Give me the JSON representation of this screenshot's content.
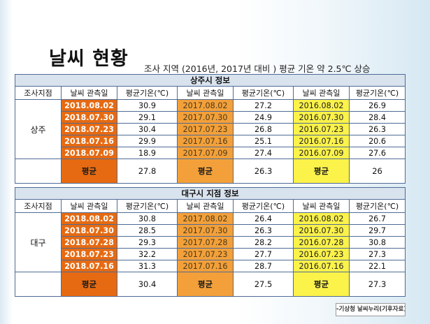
{
  "slide": {
    "title": "날씨 현황",
    "subtitle": "조사 지역 (2016년, 2017년 대비 ) 평균 기온 약 2.5℃ 상승",
    "source": "-기상청 날씨누리(기후자료)-"
  },
  "tables": [
    {
      "caption": "상주시 정보",
      "headers": {
        "station": "조사지점",
        "date": "날씨 관측일",
        "temp": "평균기온(℃)"
      },
      "region": "상주",
      "rows": [
        {
          "d2018": "2018.08.02",
          "t2018": "30.9",
          "d2017": "2017.08.02",
          "t2017": "27.2",
          "d2016": "2016.08.02",
          "t2016": "26.9"
        },
        {
          "d2018": "2018.07.30",
          "t2018": "29.1",
          "d2017": "2017.07.30",
          "t2017": "24.9",
          "d2016": "2016.07.30",
          "t2016": "28.4"
        },
        {
          "d2018": "2018.07.23",
          "t2018": "30.4",
          "d2017": "2017.07.23",
          "t2017": "26.8",
          "d2016": "2016.07.23",
          "t2016": "26.3"
        },
        {
          "d2018": "2018.07.16",
          "t2018": "29.9",
          "d2017": "2017.07.16",
          "t2017": "25.1",
          "d2016": "2016.07.16",
          "t2016": "20.6"
        },
        {
          "d2018": "2018.07.09",
          "t2018": "18.9",
          "d2017": "2017.07.09",
          "t2017": "27.4",
          "d2016": "2016.07.09",
          "t2016": "27.6"
        }
      ],
      "avg_label": "평균",
      "avg": {
        "a2018": "27.8",
        "a2017": "26.3",
        "a2016": "26"
      }
    },
    {
      "caption": "대구시 지점 정보",
      "headers": {
        "station": "조사지점",
        "date": "날씨 관측일",
        "temp": "평균기온(℃)"
      },
      "region": "대구",
      "rows": [
        {
          "d2018": "2018.08.02",
          "t2018": "30.8",
          "d2017": "2017.08.02",
          "t2017": "26.4",
          "d2016": "2016.08.02",
          "t2016": "26.7"
        },
        {
          "d2018": "2018.07.30",
          "t2018": "28.5",
          "d2017": "2017.07.30",
          "t2017": "26.3",
          "d2016": "2016.07.30",
          "t2016": "29.7"
        },
        {
          "d2018": "2018.07.28",
          "t2018": "29.3",
          "d2017": "2017.07.28",
          "t2017": "28.2",
          "d2016": "2016.07.28",
          "t2016": "30.8"
        },
        {
          "d2018": "2018.07.23",
          "t2018": "32.2",
          "d2017": "2017.07.23",
          "t2017": "27.7",
          "d2016": "2016.07.23",
          "t2016": "27.3"
        },
        {
          "d2018": "2018.07.16",
          "t2018": "31.3",
          "d2017": "2017.07.16",
          "t2017": "28.7",
          "d2016": "2016.07.16",
          "t2016": "22.1"
        }
      ],
      "avg_label": "평균",
      "avg": {
        "a2018": "30.4",
        "a2017": "27.5",
        "a2016": "27.3"
      }
    }
  ],
  "colors": {
    "year_2018": "#e66a12",
    "year_2017": "#f3a03a",
    "year_2016": "#fbf24a",
    "caption_bg": "#d9e3ee",
    "border": "#4e6b96"
  }
}
